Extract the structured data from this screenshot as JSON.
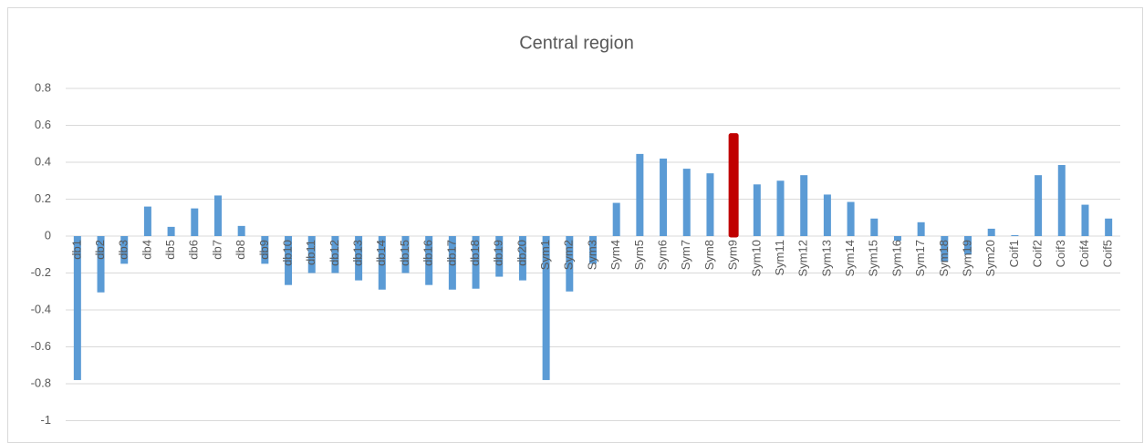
{
  "chart_data": {
    "type": "bar",
    "title": "Central region",
    "categories": [
      "db1",
      "db2",
      "db3",
      "db4",
      "db5",
      "db6",
      "db7",
      "db8",
      "db9",
      "db10",
      "db11",
      "db12",
      "db13",
      "db14",
      "db15",
      "db16",
      "db17",
      "db18",
      "db19",
      "db20",
      "Sym1",
      "Sym2",
      "Sym3",
      "Sym4",
      "Sym5",
      "Sym6",
      "Sym7",
      "Sym8",
      "Sym9",
      "Sym10",
      "Sym11",
      "Sym12",
      "Sym13",
      "Sym14",
      "Sym15",
      "Sym16",
      "Sym17",
      "Sym18",
      "Sym19",
      "Sym20",
      "Coif1",
      "Coif2",
      "Coif3",
      "Coif4",
      "Coif5"
    ],
    "values": [
      -0.78,
      -0.305,
      -0.15,
      0.16,
      0.05,
      0.15,
      0.22,
      0.055,
      -0.15,
      -0.265,
      -0.2,
      -0.2,
      -0.24,
      -0.29,
      -0.2,
      -0.265,
      -0.29,
      -0.285,
      -0.22,
      -0.24,
      -0.78,
      -0.3,
      -0.15,
      0.18,
      0.445,
      0.42,
      0.365,
      0.34,
      0.55,
      0.28,
      0.3,
      0.33,
      0.225,
      0.185,
      0.095,
      -0.025,
      0.075,
      -0.14,
      -0.1,
      0.04,
      0.005,
      0.33,
      0.385,
      0.17,
      0.095
    ],
    "colors": [
      "#5b9bd5",
      "#5b9bd5",
      "#5b9bd5",
      "#5b9bd5",
      "#5b9bd5",
      "#5b9bd5",
      "#5b9bd5",
      "#5b9bd5",
      "#5b9bd5",
      "#5b9bd5",
      "#5b9bd5",
      "#5b9bd5",
      "#5b9bd5",
      "#5b9bd5",
      "#5b9bd5",
      "#5b9bd5",
      "#5b9bd5",
      "#5b9bd5",
      "#5b9bd5",
      "#5b9bd5",
      "#5b9bd5",
      "#5b9bd5",
      "#5b9bd5",
      "#5b9bd5",
      "#5b9bd5",
      "#5b9bd5",
      "#5b9bd5",
      "#5b9bd5",
      "#c00000",
      "#5b9bd5",
      "#5b9bd5",
      "#5b9bd5",
      "#5b9bd5",
      "#5b9bd5",
      "#5b9bd5",
      "#5b9bd5",
      "#5b9bd5",
      "#5b9bd5",
      "#5b9bd5",
      "#5b9bd5",
      "#5b9bd5",
      "#5b9bd5",
      "#5b9bd5",
      "#5b9bd5",
      "#5b9bd5"
    ],
    "ylim": [
      -1,
      0.9
    ],
    "yticks": [
      -1,
      -0.8,
      -0.6,
      -0.4,
      -0.2,
      0,
      0.2,
      0.4,
      0.6,
      0.8
    ],
    "grid": true
  }
}
